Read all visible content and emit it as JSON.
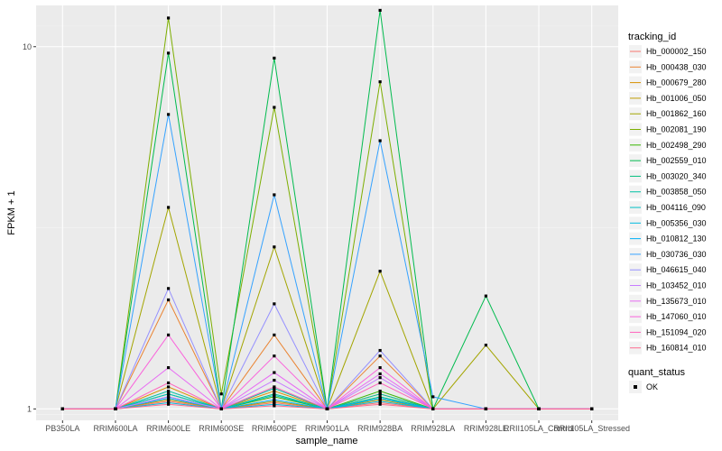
{
  "chart_data": {
    "type": "line",
    "xlabel": "sample_name",
    "ylabel": "FPKM + 1",
    "y_scale": "log10",
    "ylim": [
      0.93,
      13.0
    ],
    "y_ticks": [
      1,
      10
    ],
    "y_tick_labels": [
      "1",
      "10"
    ],
    "grid": true,
    "legend_placement": "right",
    "categories": [
      "PB350LA",
      "RRIM600LA",
      "RRIM600LE",
      "RRIM600SE",
      "RRIM600PE",
      "RRIM901LA",
      "RRIM928BA",
      "RRIM928LA",
      "RRIM928LE",
      "RRII105LA_Control",
      "RRII105LA_Stressed"
    ],
    "legend": {
      "title": "tracking_id",
      "quant_status_title": "quant_status",
      "quant_status_label": "OK"
    },
    "series": [
      {
        "name": "Hb_000002_150",
        "color": "#F8766D",
        "values": [
          1,
          1,
          1.05,
          1.0,
          1.04,
          1.0,
          1.04,
          1,
          1,
          1,
          1
        ]
      },
      {
        "name": "Hb_000438_030",
        "color": "#EA8331",
        "values": [
          1,
          1,
          2.0,
          1.0,
          1.6,
          1.0,
          1.4,
          1,
          1,
          1,
          1
        ]
      },
      {
        "name": "Hb_000679_280",
        "color": "#D89000",
        "values": [
          1,
          1,
          1.15,
          1.0,
          1.12,
          1.0,
          1.1,
          1,
          1,
          1,
          1
        ]
      },
      {
        "name": "Hb_001006_050",
        "color": "#C09B00",
        "values": [
          1,
          1,
          1.06,
          1.0,
          1.05,
          1.0,
          1.06,
          1,
          1,
          1,
          1
        ]
      },
      {
        "name": "Hb_001862_160",
        "color": "#A3A500",
        "values": [
          1,
          1,
          3.6,
          1.0,
          2.8,
          1.0,
          2.4,
          1,
          1.5,
          1,
          1
        ]
      },
      {
        "name": "Hb_002081_190",
        "color": "#7CAE00",
        "values": [
          1,
          1,
          12.0,
          1.1,
          6.8,
          1.0,
          8.0,
          1,
          1,
          1,
          1
        ]
      },
      {
        "name": "Hb_002498_290",
        "color": "#39B600",
        "values": [
          1,
          1,
          1.1,
          1.0,
          1.08,
          1.0,
          1.12,
          1,
          1,
          1,
          1
        ]
      },
      {
        "name": "Hb_002559_010",
        "color": "#00BB4E",
        "values": [
          1,
          1,
          9.6,
          1.0,
          9.3,
          1.0,
          12.6,
          1,
          2.05,
          1,
          1
        ]
      },
      {
        "name": "Hb_003020_340",
        "color": "#00BF7D",
        "values": [
          1,
          1,
          1.08,
          1.0,
          1.1,
          1.0,
          1.08,
          1,
          1,
          1,
          1
        ]
      },
      {
        "name": "Hb_003858_050",
        "color": "#00C1A3",
        "values": [
          1,
          1,
          1.12,
          1.0,
          1.14,
          1.0,
          1.1,
          1,
          1,
          1,
          1
        ]
      },
      {
        "name": "Hb_004116_090",
        "color": "#00BFC4",
        "values": [
          1,
          1,
          1.1,
          1.0,
          1.09,
          1.0,
          1.07,
          1,
          1,
          1,
          1
        ]
      },
      {
        "name": "Hb_005356_030",
        "color": "#00BAE0",
        "values": [
          1,
          1,
          1.04,
          1.0,
          1.03,
          1.0,
          1.05,
          1,
          1,
          1,
          1
        ]
      },
      {
        "name": "Hb_010812_130",
        "color": "#00B0F6",
        "values": [
          1,
          1,
          1.07,
          1.0,
          1.06,
          1.0,
          1.07,
          1,
          1,
          1,
          1
        ]
      },
      {
        "name": "Hb_030736_030",
        "color": "#35A2FF",
        "values": [
          1,
          1,
          6.5,
          1.0,
          3.9,
          1.0,
          5.5,
          1.08,
          1,
          1,
          1
        ]
      },
      {
        "name": "Hb_046615_040",
        "color": "#9590FF",
        "values": [
          1,
          1,
          2.15,
          1.0,
          1.95,
          1.0,
          1.45,
          1,
          1,
          1,
          1
        ]
      },
      {
        "name": "Hb_103452_010",
        "color": "#C77CFF",
        "values": [
          1,
          1,
          1.08,
          1.0,
          1.2,
          1.0,
          1.22,
          1,
          1,
          1,
          1
        ]
      },
      {
        "name": "Hb_135673_010",
        "color": "#E76BF3",
        "values": [
          1,
          1,
          1.3,
          1.0,
          1.26,
          1.0,
          1.25,
          1,
          1,
          1,
          1
        ]
      },
      {
        "name": "Hb_147060_010",
        "color": "#FA62DB",
        "values": [
          1,
          1,
          1.6,
          1.0,
          1.4,
          1.0,
          1.3,
          1,
          1,
          1,
          1
        ]
      },
      {
        "name": "Hb_151094_020",
        "color": "#FF62BC",
        "values": [
          1,
          1,
          1.18,
          1.0,
          1.15,
          1.0,
          1.18,
          1,
          1,
          1,
          1
        ]
      },
      {
        "name": "Hb_160814_010",
        "color": "#FF6C91",
        "values": [
          1,
          1,
          1.03,
          1.0,
          1.02,
          1.0,
          1.03,
          1,
          1,
          1,
          1
        ]
      }
    ]
  }
}
